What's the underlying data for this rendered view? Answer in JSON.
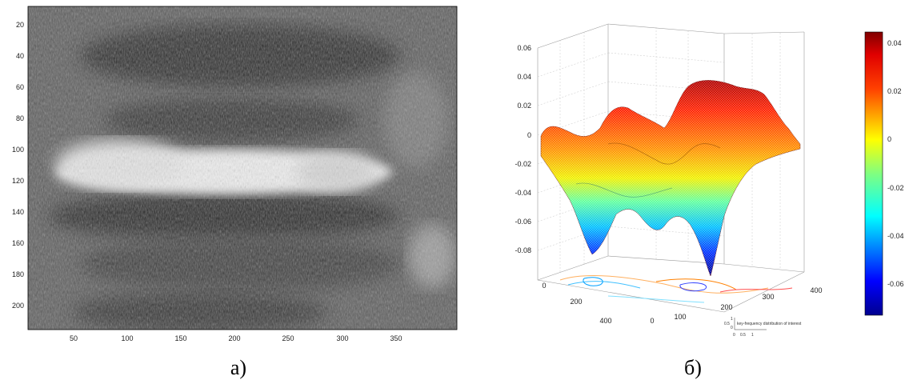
{
  "panel_a": {
    "caption": "а)",
    "x_ticks": [
      "50",
      "100",
      "150",
      "200",
      "250",
      "300",
      "350"
    ],
    "y_ticks": [
      "20",
      "40",
      "60",
      "80",
      "100",
      "120",
      "140",
      "160",
      "180",
      "200"
    ]
  },
  "panel_b": {
    "caption": "б)",
    "z_ticks": [
      "0.06",
      "0.04",
      "0.02",
      "0",
      "-0.02",
      "-0.04",
      "-0.06",
      "-0.08"
    ],
    "x_ticks": [
      "0",
      "100",
      "200",
      "300",
      "400"
    ],
    "y_ticks": [
      "0",
      "200",
      "400"
    ],
    "colorbar_ticks": [
      "0.04",
      "0.02",
      "0",
      "-0.02",
      "-0.04",
      "-0.06"
    ],
    "inset_label": "key-frequency distribution of interest",
    "inset_ticks": [
      "0",
      "0.5",
      "1"
    ],
    "inset_y": [
      "1",
      "0.5",
      "0"
    ]
  },
  "colors": {
    "colormap": [
      "#00008f",
      "#0000ff",
      "#0080ff",
      "#00ffff",
      "#80ff80",
      "#ffff00",
      "#ff8000",
      "#ff0000",
      "#800000"
    ]
  }
}
